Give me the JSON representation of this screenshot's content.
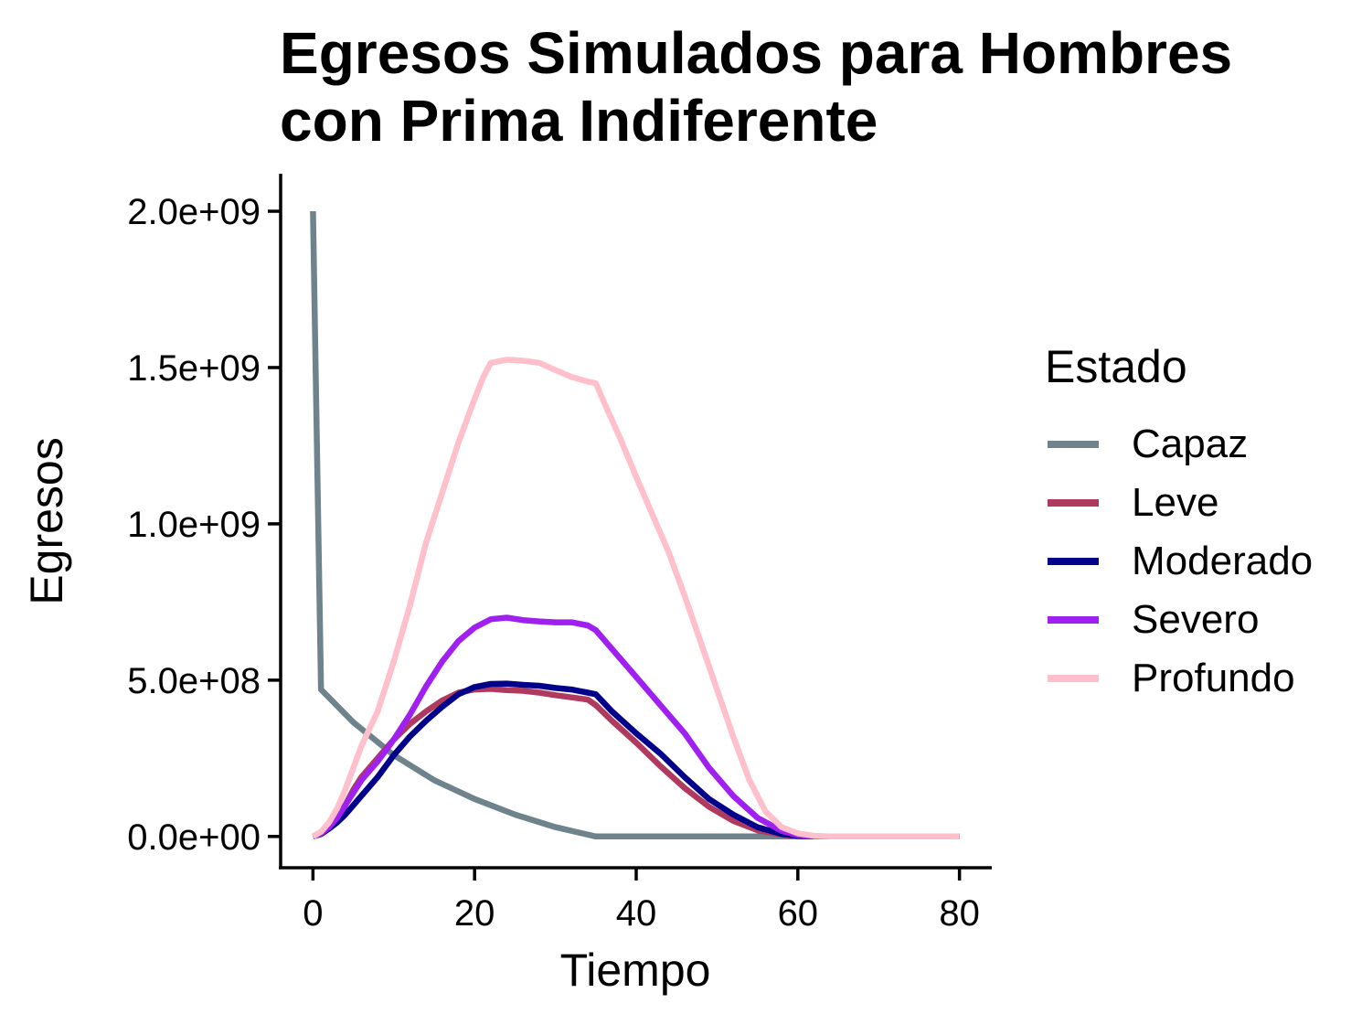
{
  "title": [
    "Egresos Simulados para Hombres",
    "con Prima Indiferente"
  ],
  "chart_data": {
    "type": "line",
    "title": "Egresos Simulados para Hombres con Prima Indiferente",
    "xlabel": "Tiempo",
    "ylabel": "Egresos",
    "xlim": [
      -4,
      84
    ],
    "ylim": [
      -100000000,
      2120000000
    ],
    "x_ticks": [
      0,
      20,
      40,
      60,
      80
    ],
    "x_tick_labels": [
      "0",
      "20",
      "40",
      "60",
      "80"
    ],
    "y_ticks": [
      0,
      500000000,
      1000000000,
      1500000000,
      2000000000
    ],
    "y_tick_labels": [
      "0.0e+00",
      "5.0e+08",
      "1.0e+09",
      "1.5e+09",
      "2.0e+09"
    ],
    "grid": false,
    "legend": {
      "title": "Estado",
      "placement": "right",
      "entries": [
        "Capaz",
        "Leve",
        "Moderado",
        "Severo",
        "Profundo"
      ]
    },
    "series": [
      {
        "name": "Capaz",
        "color": "#6e838c",
        "points": [
          [
            0,
            2000000000
          ],
          [
            1,
            470000000
          ],
          [
            5,
            365000000
          ],
          [
            10,
            260000000
          ],
          [
            15,
            180000000
          ],
          [
            20,
            120000000
          ],
          [
            25,
            70000000
          ],
          [
            30,
            30000000
          ],
          [
            35,
            0
          ],
          [
            40,
            0
          ],
          [
            50,
            0
          ],
          [
            60,
            0
          ],
          [
            70,
            0
          ],
          [
            80,
            0
          ]
        ]
      },
      {
        "name": "Leve",
        "color": "#b03a5e",
        "points": [
          [
            0,
            0
          ],
          [
            1,
            10000000
          ],
          [
            2,
            30000000
          ],
          [
            3,
            60000000
          ],
          [
            4,
            100000000
          ],
          [
            5,
            150000000
          ],
          [
            6,
            190000000
          ],
          [
            8,
            250000000
          ],
          [
            10,
            310000000
          ],
          [
            12,
            360000000
          ],
          [
            14,
            400000000
          ],
          [
            16,
            435000000
          ],
          [
            18,
            460000000
          ],
          [
            20,
            470000000
          ],
          [
            22,
            472000000
          ],
          [
            24,
            468000000
          ],
          [
            26,
            466000000
          ],
          [
            28,
            460000000
          ],
          [
            30,
            452000000
          ],
          [
            32,
            445000000
          ],
          [
            34,
            438000000
          ],
          [
            35,
            420000000
          ],
          [
            37,
            370000000
          ],
          [
            40,
            300000000
          ],
          [
            43,
            225000000
          ],
          [
            46,
            155000000
          ],
          [
            49,
            95000000
          ],
          [
            52,
            50000000
          ],
          [
            55,
            20000000
          ],
          [
            58,
            6000000
          ],
          [
            60,
            1000000
          ],
          [
            62,
            0
          ],
          [
            65,
            0
          ],
          [
            70,
            0
          ],
          [
            75,
            0
          ],
          [
            80,
            0
          ]
        ]
      },
      {
        "name": "Moderado",
        "color": "#00008b",
        "points": [
          [
            0,
            0
          ],
          [
            1,
            8000000
          ],
          [
            2,
            25000000
          ],
          [
            3,
            45000000
          ],
          [
            4,
            70000000
          ],
          [
            5,
            100000000
          ],
          [
            6,
            130000000
          ],
          [
            8,
            190000000
          ],
          [
            10,
            260000000
          ],
          [
            12,
            320000000
          ],
          [
            14,
            370000000
          ],
          [
            16,
            415000000
          ],
          [
            18,
            455000000
          ],
          [
            20,
            478000000
          ],
          [
            22,
            488000000
          ],
          [
            24,
            489000000
          ],
          [
            26,
            485000000
          ],
          [
            28,
            482000000
          ],
          [
            30,
            475000000
          ],
          [
            32,
            470000000
          ],
          [
            34,
            460000000
          ],
          [
            35,
            455000000
          ],
          [
            37,
            400000000
          ],
          [
            40,
            330000000
          ],
          [
            43,
            265000000
          ],
          [
            46,
            190000000
          ],
          [
            49,
            120000000
          ],
          [
            52,
            70000000
          ],
          [
            55,
            30000000
          ],
          [
            58,
            8000000
          ],
          [
            60,
            2000000
          ],
          [
            62,
            0
          ],
          [
            65,
            0
          ],
          [
            70,
            0
          ],
          [
            75,
            0
          ],
          [
            80,
            0
          ]
        ]
      },
      {
        "name": "Severo",
        "color": "#a020f0",
        "points": [
          [
            0,
            0
          ],
          [
            1,
            10000000
          ],
          [
            2,
            30000000
          ],
          [
            3,
            60000000
          ],
          [
            4,
            100000000
          ],
          [
            5,
            140000000
          ],
          [
            6,
            180000000
          ],
          [
            8,
            240000000
          ],
          [
            10,
            310000000
          ],
          [
            12,
            390000000
          ],
          [
            14,
            480000000
          ],
          [
            16,
            560000000
          ],
          [
            18,
            625000000
          ],
          [
            20,
            668000000
          ],
          [
            22,
            695000000
          ],
          [
            24,
            700000000
          ],
          [
            26,
            692000000
          ],
          [
            28,
            688000000
          ],
          [
            30,
            685000000
          ],
          [
            32,
            685000000
          ],
          [
            34,
            675000000
          ],
          [
            35,
            660000000
          ],
          [
            37,
            600000000
          ],
          [
            40,
            510000000
          ],
          [
            43,
            420000000
          ],
          [
            46,
            330000000
          ],
          [
            49,
            220000000
          ],
          [
            52,
            130000000
          ],
          [
            55,
            60000000
          ],
          [
            58,
            18000000
          ],
          [
            60,
            4000000
          ],
          [
            62,
            0
          ],
          [
            65,
            0
          ],
          [
            70,
            0
          ],
          [
            75,
            0
          ],
          [
            80,
            0
          ]
        ]
      },
      {
        "name": "Profundo",
        "color": "#ffc0cb",
        "points": [
          [
            0,
            0
          ],
          [
            1,
            15000000
          ],
          [
            2,
            45000000
          ],
          [
            3,
            90000000
          ],
          [
            4,
            150000000
          ],
          [
            5,
            220000000
          ],
          [
            6,
            290000000
          ],
          [
            8,
            400000000
          ],
          [
            10,
            560000000
          ],
          [
            12,
            740000000
          ],
          [
            14,
            940000000
          ],
          [
            16,
            1100000000
          ],
          [
            18,
            1260000000
          ],
          [
            20,
            1400000000
          ],
          [
            21,
            1465000000
          ],
          [
            22,
            1515000000
          ],
          [
            24,
            1525000000
          ],
          [
            26,
            1522000000
          ],
          [
            28,
            1515000000
          ],
          [
            30,
            1492000000
          ],
          [
            32,
            1470000000
          ],
          [
            34,
            1455000000
          ],
          [
            35,
            1450000000
          ],
          [
            36,
            1390000000
          ],
          [
            38,
            1275000000
          ],
          [
            40,
            1150000000
          ],
          [
            42,
            1030000000
          ],
          [
            44,
            910000000
          ],
          [
            46,
            770000000
          ],
          [
            48,
            620000000
          ],
          [
            50,
            470000000
          ],
          [
            52,
            320000000
          ],
          [
            54,
            180000000
          ],
          [
            56,
            80000000
          ],
          [
            58,
            30000000
          ],
          [
            60,
            10000000
          ],
          [
            62,
            2000000
          ],
          [
            64,
            0
          ],
          [
            70,
            0
          ],
          [
            75,
            0
          ],
          [
            80,
            0
          ]
        ]
      }
    ]
  }
}
